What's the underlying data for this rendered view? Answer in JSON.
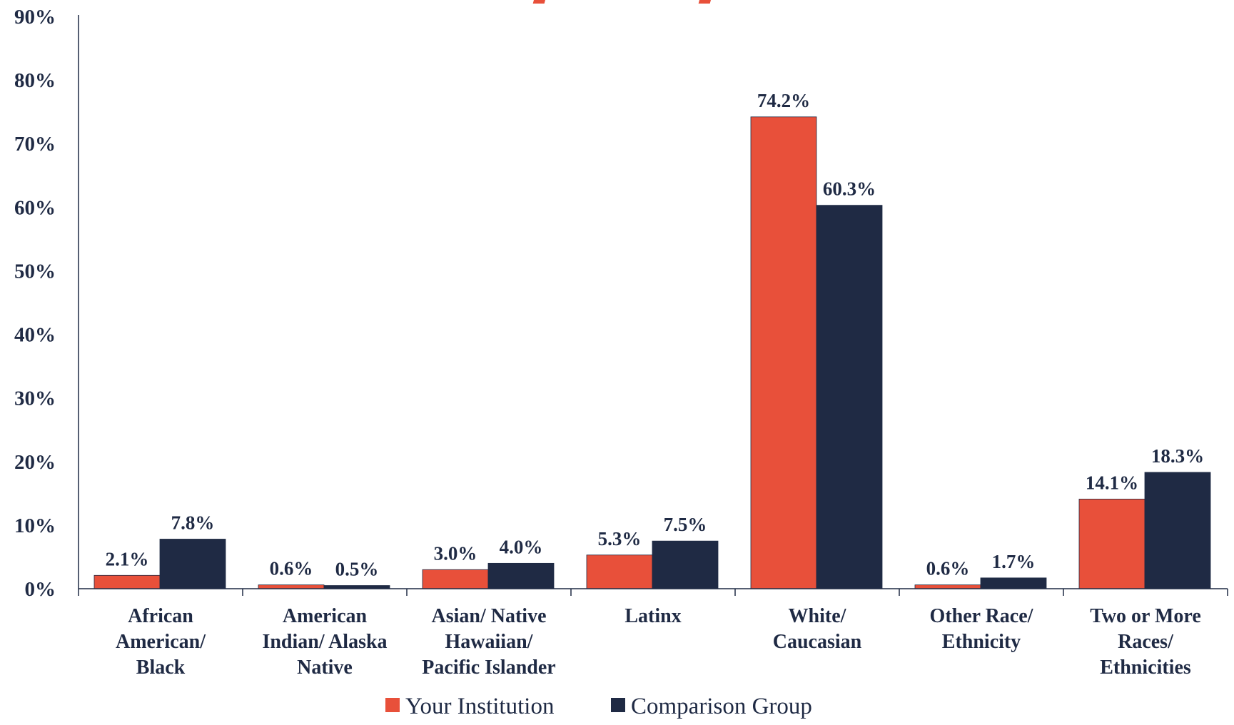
{
  "chart_data": {
    "type": "bar",
    "categories": [
      [
        "African",
        "American/",
        "Black"
      ],
      [
        "American",
        "Indian/ Alaska",
        "Native"
      ],
      [
        "Asian/ Native",
        "Hawaiian/",
        "Pacific Islander"
      ],
      [
        "Latinx"
      ],
      [
        "White/",
        "Caucasian"
      ],
      [
        "Other Race/",
        "Ethnicity"
      ],
      [
        "Two or More",
        "Races/",
        "Ethnicities"
      ]
    ],
    "series": [
      {
        "name": "Your Institution",
        "color": "#e8503a",
        "values": [
          2.1,
          0.6,
          3.0,
          5.3,
          74.2,
          0.6,
          14.1
        ],
        "labels": [
          "2.1%",
          "0.6%",
          "3.0%",
          "5.3%",
          "74.2%",
          "0.6%",
          "14.1%"
        ]
      },
      {
        "name": "Comparison Group",
        "color": "#1f2a44",
        "values": [
          7.8,
          0.5,
          4.0,
          7.5,
          60.3,
          1.7,
          18.3
        ],
        "labels": [
          "7.8%",
          "0.5%",
          "4.0%",
          "7.5%",
          "60.3%",
          "1.7%",
          "18.3%"
        ]
      }
    ],
    "y_ticks": [
      "0%",
      "10%",
      "20%",
      "30%",
      "40%",
      "50%",
      "60%",
      "70%",
      "80%",
      "90%"
    ],
    "ylim": [
      0,
      90
    ],
    "grid": false,
    "legend_position": "bottom-center",
    "title_color": "#e8503a"
  }
}
